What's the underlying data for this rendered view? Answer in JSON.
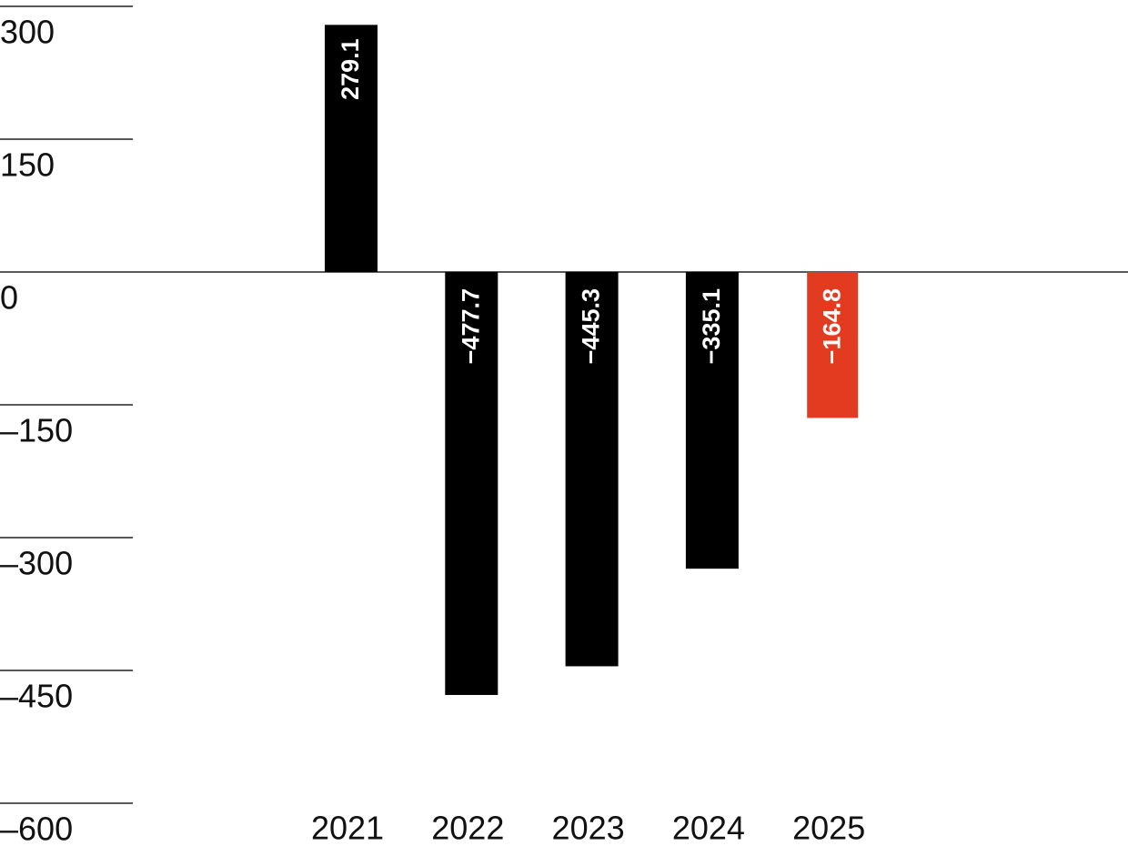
{
  "chart_data": {
    "type": "bar",
    "categories": [
      "2021",
      "2022",
      "2023",
      "2024",
      "2025"
    ],
    "values": [
      279.1,
      -477.7,
      -445.3,
      -335.1,
      -164.8
    ],
    "value_labels": [
      "279.1",
      "−477.7",
      "−445.3",
      "−335.1",
      "−164.8"
    ],
    "colors": [
      "#000000",
      "#000000",
      "#000000",
      "#000000",
      "#e23b1f"
    ],
    "ylim": [
      -600,
      300
    ],
    "yticks": [
      300,
      150,
      0,
      {
        "value": -150,
        "label": "–150"
      },
      {
        "value": -300,
        "label": "–300"
      },
      {
        "value": -450,
        "label": "–450"
      },
      {
        "value": -600,
        "label": "–600"
      }
    ],
    "grid": true
  }
}
